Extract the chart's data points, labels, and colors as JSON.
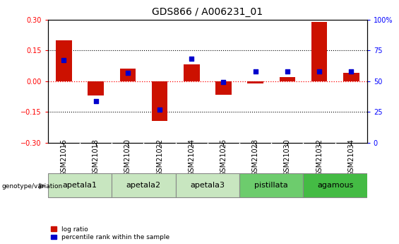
{
  "title": "GDS866 / A006231_01",
  "samples": [
    "GSM21016",
    "GSM21018",
    "GSM21020",
    "GSM21022",
    "GSM21024",
    "GSM21026",
    "GSM21028",
    "GSM21030",
    "GSM21032",
    "GSM21034"
  ],
  "log_ratio": [
    0.2,
    -0.07,
    0.06,
    -0.195,
    0.08,
    -0.065,
    -0.01,
    0.02,
    0.29,
    0.04
  ],
  "percentile_rank": [
    67,
    34,
    57,
    27,
    68,
    49,
    58,
    58,
    58,
    58
  ],
  "ylim_left": [
    -0.3,
    0.3
  ],
  "ylim_right": [
    0,
    100
  ],
  "yticks_left": [
    -0.3,
    -0.15,
    0,
    0.15,
    0.3
  ],
  "yticks_right": [
    0,
    25,
    50,
    75,
    100
  ],
  "ytick_labels_right": [
    "0",
    "25",
    "50",
    "75",
    "100%"
  ],
  "groups": [
    {
      "name": "apetala1",
      "samples": [
        "GSM21016",
        "GSM21018"
      ],
      "color": "#c8e6c0"
    },
    {
      "name": "apetala2",
      "samples": [
        "GSM21020",
        "GSM21022"
      ],
      "color": "#c8e6c0"
    },
    {
      "name": "apetala3",
      "samples": [
        "GSM21024",
        "GSM21026"
      ],
      "color": "#c8e6c0"
    },
    {
      "name": "pistillata",
      "samples": [
        "GSM21028",
        "GSM21030"
      ],
      "color": "#6dcc6d"
    },
    {
      "name": "agamous",
      "samples": [
        "GSM21032",
        "GSM21034"
      ],
      "color": "#44bb44"
    }
  ],
  "bar_color": "#cc1100",
  "dot_color": "#0000cc",
  "bar_width": 0.5,
  "dot_size": 22,
  "legend_items": [
    "log ratio",
    "percentile rank within the sample"
  ],
  "legend_colors": [
    "#cc1100",
    "#0000cc"
  ],
  "genotype_label": "genotype/variation",
  "background_color": "#ffffff",
  "title_fontsize": 10,
  "tick_fontsize": 7,
  "group_label_fontsize": 8,
  "sample_bg_color": "#cccccc",
  "group_border_color": "#888888"
}
